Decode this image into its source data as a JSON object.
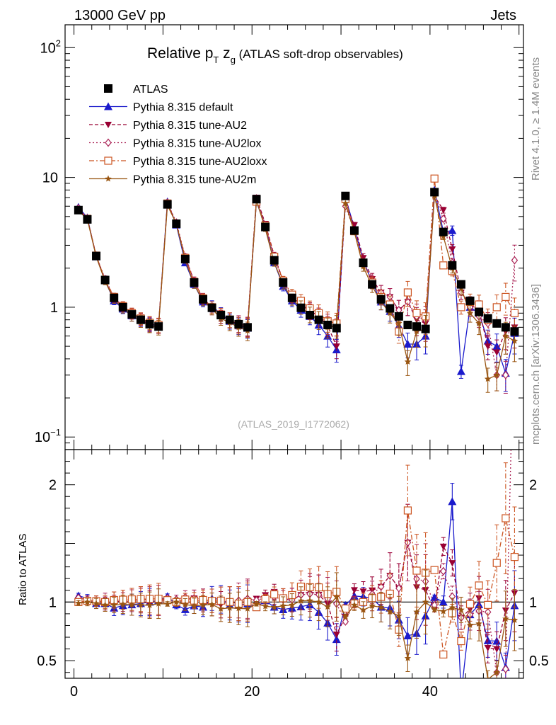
{
  "header": {
    "left": "13000 GeV pp",
    "right": "Jets"
  },
  "side_labels": {
    "rivet": "Rivet 4.1.0, ≥ 1.4M events",
    "mcplots": "mcplots.cern.ch [arXiv:1306.3436]"
  },
  "colors": {
    "ATLAS": "#000000",
    "default": "#1a1acc",
    "AU2": "#990033",
    "AU2lox": "#aa2255",
    "AU2loxx": "#cc5522",
    "AU2m": "#995511"
  },
  "chart_data": [
    {
      "type": "scatter",
      "panel": "main",
      "title_main": "Relative p",
      "title_sub_T": "T",
      "title_z": " z",
      "title_sub_g": "g",
      "title_rest": " (ATLAS soft-drop observables)",
      "analysis_label": "(ATLAS_2019_I1772062)",
      "yscale": "log",
      "xlim": [
        -1,
        50.5
      ],
      "ylim": [
        0.08,
        150
      ],
      "y_ticks": [
        {
          "value": 100,
          "base": "10",
          "exp": "2"
        },
        {
          "value": 10,
          "label": "10"
        },
        {
          "value": 1,
          "label": "1"
        },
        {
          "value": 0.1,
          "base": "10",
          "exp": "−1"
        }
      ],
      "x": [
        0.5,
        1.5,
        2.5,
        3.5,
        4.5,
        5.5,
        6.5,
        7.5,
        8.5,
        9.5,
        10.5,
        11.5,
        12.5,
        13.5,
        14.5,
        15.5,
        16.5,
        17.5,
        18.5,
        19.5,
        20.5,
        21.5,
        22.5,
        23.5,
        24.5,
        25.5,
        26.5,
        27.5,
        28.5,
        29.5,
        30.5,
        31.5,
        32.5,
        33.5,
        34.5,
        35.5,
        36.5,
        37.5,
        38.5,
        39.5,
        40.5,
        41.5,
        42.5,
        43.5,
        44.5,
        45.5,
        46.5,
        47.5,
        48.5,
        49.5
      ],
      "series": [
        {
          "name": "ATLAS",
          "key": "ATLAS",
          "marker": "square-filled",
          "line": "none",
          "values": [
            5.6,
            4.75,
            2.48,
            1.62,
            1.18,
            1.0,
            0.88,
            0.8,
            0.74,
            0.71,
            6.2,
            4.4,
            2.35,
            1.55,
            1.15,
            0.99,
            0.87,
            0.8,
            0.74,
            0.7,
            6.8,
            4.15,
            2.3,
            1.55,
            1.18,
            0.99,
            0.87,
            0.8,
            0.73,
            0.69,
            7.2,
            3.9,
            2.2,
            1.5,
            1.15,
            0.98,
            0.85,
            0.73,
            0.71,
            0.68,
            7.7,
            3.8,
            2.1,
            1.5,
            1.12,
            0.92,
            0.82,
            0.75,
            0.7,
            0.65
          ]
        },
        {
          "name": "Pythia 8.315 default",
          "key": "default",
          "marker": "triangle-up-filled",
          "line": "solid",
          "values": [
            5.9,
            4.9,
            2.45,
            1.6,
            1.12,
            0.97,
            0.86,
            0.79,
            0.74,
            0.72,
            6.5,
            4.3,
            2.2,
            1.5,
            1.1,
            1.02,
            0.89,
            0.78,
            0.72,
            0.69,
            6.5,
            4.2,
            2.2,
            1.45,
            1.12,
            0.95,
            0.85,
            0.73,
            0.6,
            0.47,
            7.0,
            4.1,
            2.3,
            1.55,
            1.1,
            0.93,
            0.72,
            0.52,
            0.52,
            0.6,
            8.0,
            3.8,
            3.9,
            0.32,
            1.0,
            0.9,
            0.55,
            0.5,
            0.31,
            0.63
          ]
        },
        {
          "name": "Pythia 8.315 tune-AU2",
          "key": "AU2",
          "marker": "triangle-down-filled",
          "line": "dashed",
          "values": [
            5.7,
            4.8,
            2.5,
            1.6,
            1.17,
            1.02,
            0.9,
            0.81,
            0.73,
            0.72,
            6.3,
            4.4,
            2.4,
            1.6,
            1.15,
            0.97,
            0.85,
            0.8,
            0.73,
            0.71,
            7.0,
            4.4,
            2.5,
            1.6,
            1.2,
            1.05,
            0.95,
            0.85,
            0.72,
            0.5,
            6.3,
            4.3,
            2.4,
            1.65,
            1.3,
            1.2,
            0.95,
            1.1,
            0.8,
            0.75,
            7.2,
            5.6,
            2.8,
            1.3,
            1.05,
            0.95,
            0.5,
            0.45,
            0.65,
            0.7
          ]
        },
        {
          "name": "Pythia 8.315 tune-AU2lox",
          "key": "AU2lox",
          "marker": "diamond-open",
          "line": "dotted",
          "values": [
            5.8,
            4.85,
            2.5,
            1.65,
            1.2,
            1.0,
            0.89,
            0.82,
            0.75,
            0.72,
            6.4,
            4.5,
            2.45,
            1.6,
            1.18,
            1.0,
            0.88,
            0.8,
            0.75,
            0.72,
            6.9,
            4.3,
            2.4,
            1.58,
            1.2,
            1.05,
            0.93,
            0.85,
            0.75,
            0.68,
            6.0,
            3.9,
            2.2,
            1.6,
            1.3,
            1.2,
            0.95,
            1.1,
            0.85,
            0.8,
            7.5,
            4.8,
            2.2,
            1.3,
            1.0,
            0.85,
            0.75,
            0.3,
            0.3,
            2.3
          ]
        },
        {
          "name": "Pythia 8.315 tune-AU2loxx",
          "key": "AU2loxx",
          "marker": "square-open",
          "line": "dashdot",
          "values": [
            5.6,
            4.8,
            2.5,
            1.62,
            1.2,
            1.02,
            0.9,
            0.82,
            0.76,
            0.73,
            6.3,
            4.4,
            2.4,
            1.57,
            1.17,
            1.0,
            0.88,
            0.8,
            0.73,
            0.7,
            6.5,
            4.25,
            2.45,
            1.6,
            1.25,
            1.12,
            0.98,
            0.9,
            0.78,
            0.75,
            6.8,
            3.85,
            2.2,
            1.55,
            1.2,
            1.05,
            0.65,
            1.3,
            0.9,
            0.85,
            9.8,
            2.1,
            1.9,
            1.0,
            1.1,
            1.05,
            0.8,
            1.0,
            1.2,
            0.9
          ]
        },
        {
          "name": "Pythia 8.315 tune-AU2m",
          "key": "AU2m",
          "marker": "star-filled",
          "line": "solid",
          "values": [
            5.55,
            4.75,
            2.45,
            1.58,
            1.15,
            0.98,
            0.86,
            0.78,
            0.72,
            0.7,
            6.1,
            4.4,
            2.3,
            1.5,
            1.12,
            0.97,
            0.82,
            0.76,
            0.7,
            0.66,
            6.7,
            4.0,
            2.2,
            1.5,
            1.15,
            1.0,
            0.88,
            0.8,
            0.7,
            0.72,
            6.3,
            3.8,
            2.05,
            1.45,
            1.1,
            0.9,
            0.75,
            0.38,
            0.65,
            0.68,
            7.2,
            3.5,
            2.0,
            1.4,
            0.9,
            0.75,
            0.28,
            0.3,
            0.6,
            0.55
          ]
        }
      ],
      "legend": [
        "Pythia 8.315 default",
        "Pythia 8.315 tune-AU2",
        "Pythia 8.315 tune-AU2lox",
        "Pythia 8.315 tune-AU2loxx",
        "Pythia 8.315 tune-AU2m"
      ],
      "legend_atlas": "ATLAS"
    },
    {
      "type": "scatter",
      "panel": "ratio",
      "ylabel": "Ratio to ATLAS",
      "yscale": "linear",
      "ylim": [
        0.35,
        2.3
      ],
      "y_ticks": [
        {
          "value": 0.5,
          "label": "0.5"
        },
        {
          "value": 1,
          "label": "1"
        },
        {
          "value": 2,
          "label": "2"
        }
      ],
      "x_ticks": [
        {
          "value": 0,
          "label": "0"
        },
        {
          "value": 20,
          "label": "20"
        },
        {
          "value": 40,
          "label": "40"
        }
      ]
    }
  ]
}
